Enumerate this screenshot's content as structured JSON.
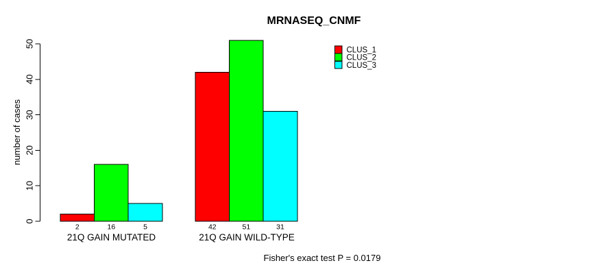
{
  "chart_data": {
    "type": "bar",
    "title": "MRNASEQ_CNMF",
    "ylabel": "number of cases",
    "xlabel": "",
    "note": "Fisher's exact test P = 0.0179",
    "categories": [
      "21Q GAIN MUTATED",
      "21Q GAIN WILD-TYPE"
    ],
    "series": [
      {
        "name": "CLUS_1",
        "color": "#ff0000",
        "values": [
          2,
          42
        ]
      },
      {
        "name": "CLUS_2",
        "color": "#00ff00",
        "values": [
          16,
          51
        ]
      },
      {
        "name": "CLUS_3",
        "color": "#00ffff",
        "values": [
          5,
          31
        ]
      }
    ],
    "yticks": [
      0,
      10,
      20,
      30,
      40,
      50
    ],
    "ylim": [
      0,
      51
    ],
    "grid": false,
    "bar_value_labels_shown": true,
    "legend_position": "top-right",
    "axis_color": "#000000",
    "bar_border_color": "#000000"
  }
}
